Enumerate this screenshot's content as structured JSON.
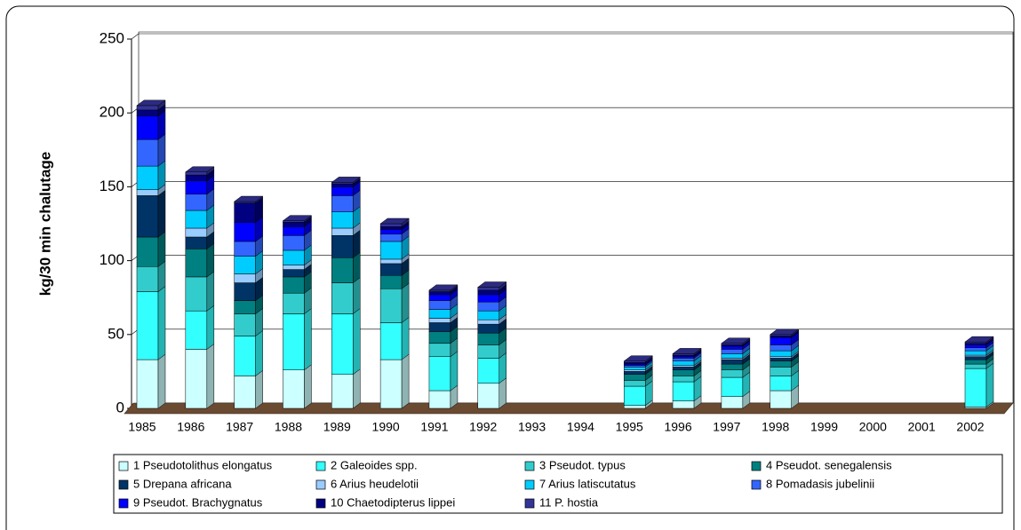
{
  "chart_data": {
    "type": "stacked-bar-3d",
    "y_label": "kg/30 min chalutage",
    "categories": [
      "1985",
      "1986",
      "1987",
      "1988",
      "1989",
      "1990",
      "1991",
      "1992",
      "1993",
      "1994",
      "1995",
      "1996",
      "1997",
      "1998",
      "1999",
      "2000",
      "2001",
      "2002"
    ],
    "ylim": [
      0,
      250
    ],
    "yticks": [
      0,
      50,
      100,
      150,
      200,
      250
    ],
    "grid": true,
    "legend": "bottom",
    "series": [
      {
        "name": "1 Pseudotolithus elongatus",
        "color": "#ccffff",
        "values": [
          33,
          40,
          22,
          26,
          23,
          33,
          12,
          17,
          null,
          null,
          2,
          5,
          8,
          12,
          null,
          null,
          null,
          1
        ]
      },
      {
        "name": "2 Galeoides spp.",
        "color": "#33ffff",
        "values": [
          46,
          26,
          27,
          38,
          41,
          25,
          23,
          17,
          null,
          null,
          13,
          13,
          13,
          10,
          null,
          null,
          null,
          26
        ]
      },
      {
        "name": "3 Pseudot. typus",
        "color": "#33cccc",
        "values": [
          17,
          23,
          15,
          14,
          21,
          23,
          9,
          9,
          null,
          null,
          4,
          4,
          5,
          6,
          null,
          null,
          null,
          3
        ]
      },
      {
        "name": "4 Pseudot. senegalensis",
        "color": "#008080",
        "values": [
          20,
          19,
          9,
          11,
          17,
          9,
          8,
          8,
          null,
          null,
          4,
          4,
          4,
          4,
          null,
          null,
          null,
          3
        ]
      },
      {
        "name": "5 Drepana africana",
        "color": "#003366",
        "values": [
          28,
          8,
          12,
          5,
          15,
          8,
          6,
          6,
          null,
          null,
          2,
          2,
          3,
          2,
          null,
          null,
          null,
          2
        ]
      },
      {
        "name": "6 Arius heudelotii",
        "color": "#99ccff",
        "values": [
          4,
          6,
          6,
          3,
          5,
          3,
          3,
          3,
          null,
          null,
          1,
          1,
          1,
          1,
          null,
          null,
          null,
          1
        ]
      },
      {
        "name": "7 Arius latiscutatus",
        "color": "#00ccff",
        "values": [
          16,
          12,
          12,
          10,
          11,
          12,
          6,
          6,
          null,
          null,
          2,
          3,
          3,
          4,
          null,
          null,
          null,
          3
        ]
      },
      {
        "name": "8 Pomadasis jubelinii",
        "color": "#3366ff",
        "values": [
          18,
          11,
          10,
          10,
          11,
          5,
          6,
          6,
          null,
          null,
          1,
          2,
          3,
          4,
          null,
          null,
          null,
          2
        ]
      },
      {
        "name": "9 Pseudot. Brachygnatus",
        "color": "#0000ff",
        "values": [
          16,
          9,
          13,
          6,
          6,
          3,
          4,
          5,
          null,
          null,
          1,
          1,
          2,
          5,
          null,
          null,
          null,
          2
        ]
      },
      {
        "name": "10 Chaetodipterus lippei",
        "color": "#000080",
        "values": [
          4,
          4,
          13,
          3,
          2,
          2,
          2,
          3,
          null,
          null,
          1,
          1,
          1,
          1,
          null,
          null,
          null,
          1
        ]
      },
      {
        "name": "11 P. hostia",
        "color": "#333399",
        "values": [
          3,
          2,
          1,
          1,
          1,
          2,
          1,
          2,
          null,
          null,
          1,
          1,
          1,
          1,
          null,
          null,
          null,
          1
        ]
      }
    ]
  }
}
